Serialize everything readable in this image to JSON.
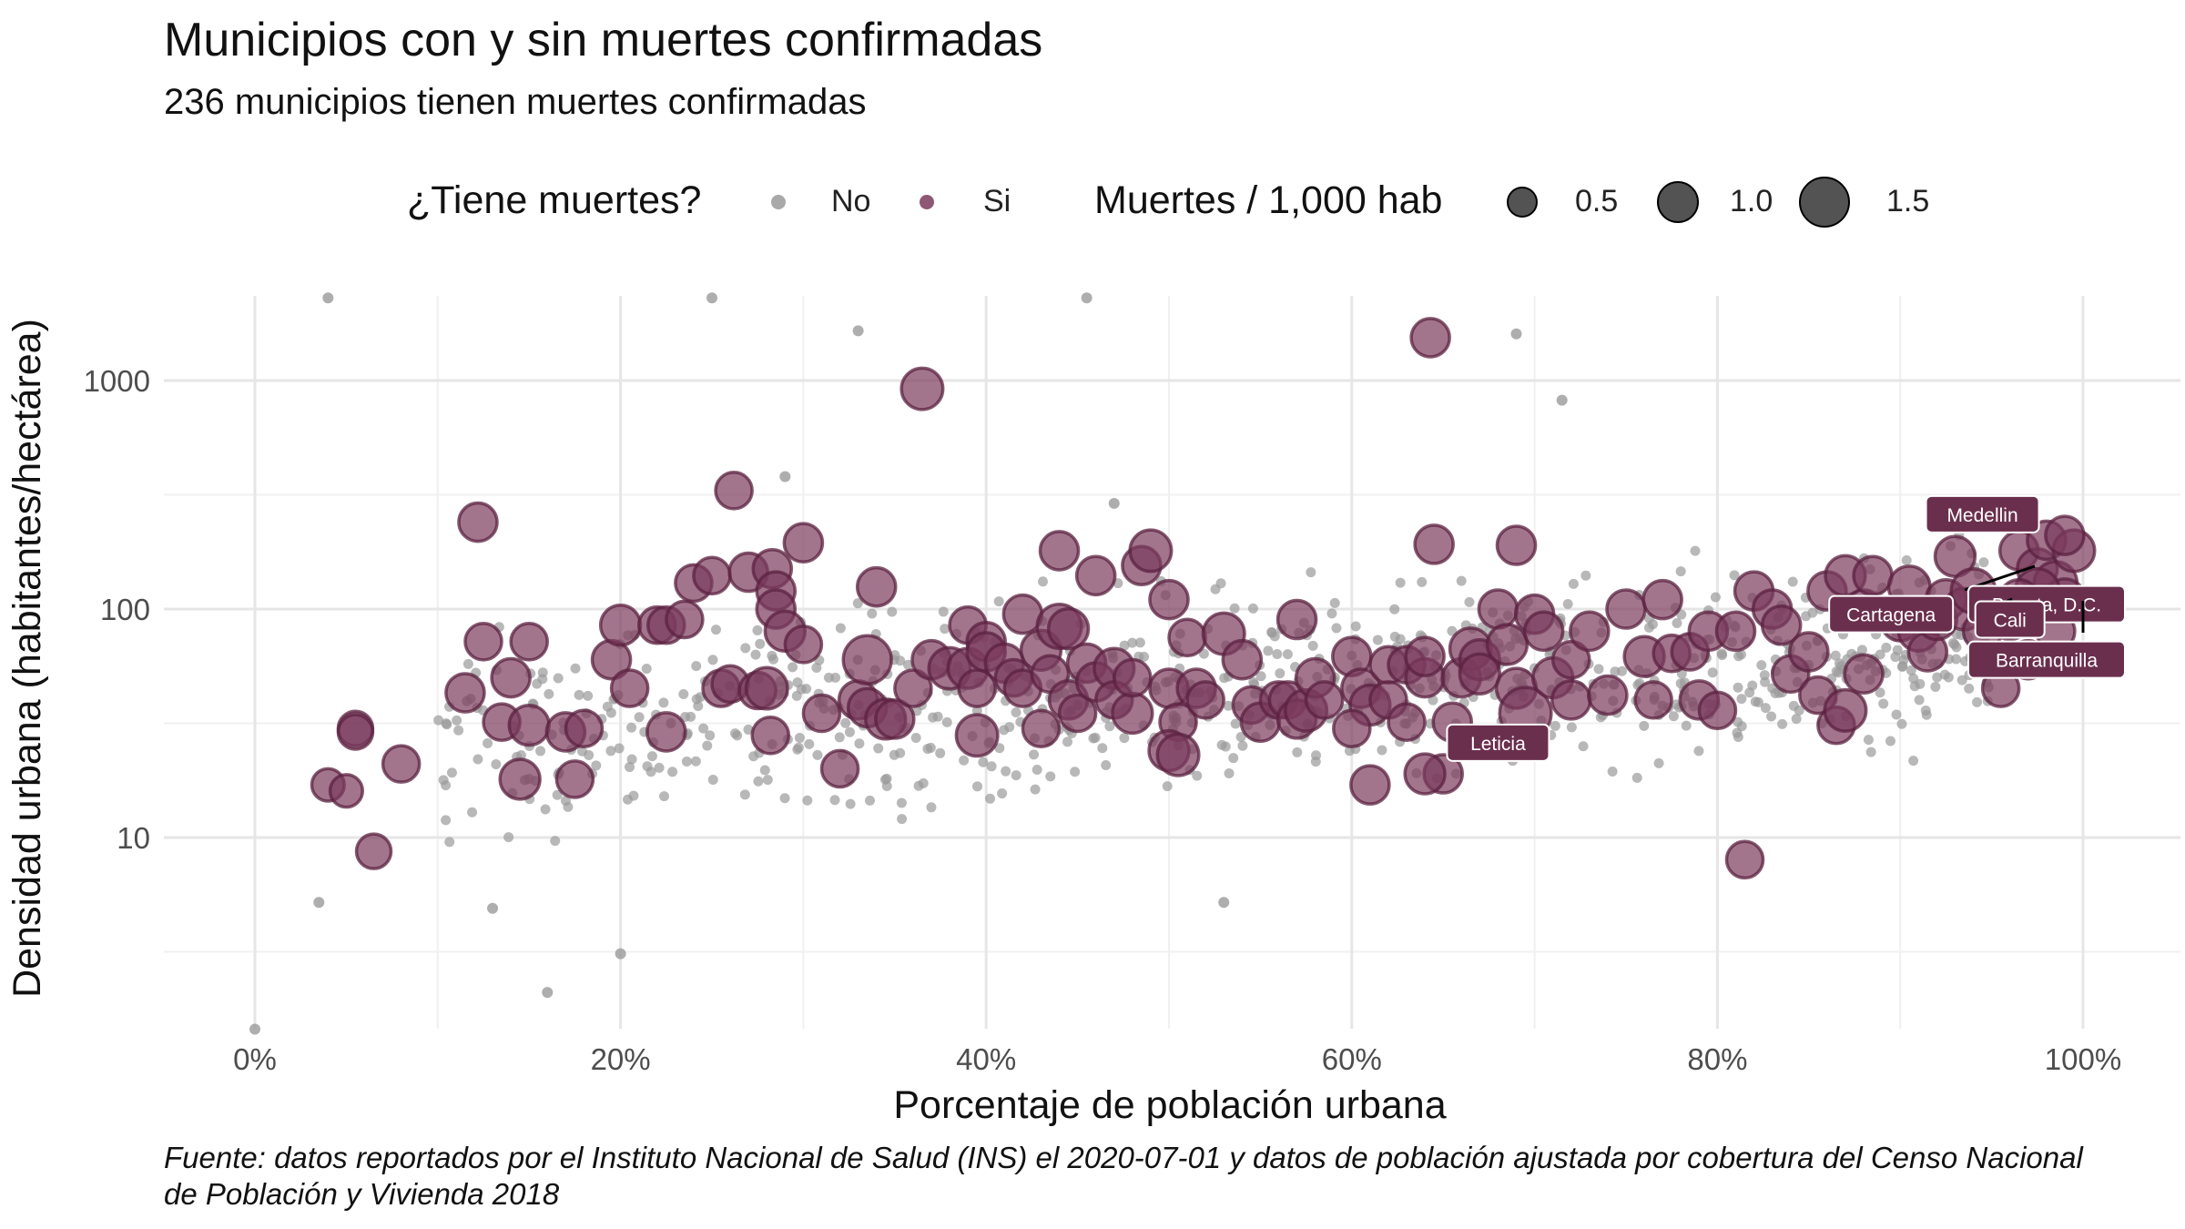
{
  "chart_data": {
    "type": "scatter",
    "title": "Municipios con y sin muertes confirmadas",
    "subtitle": "236 municipios tienen muertes confirmadas",
    "xlabel": "Porcentaje de población urbana",
    "ylabel": "Densidad urbana (habitantes/hectárea)",
    "x_scale": "linear",
    "y_scale": "log10",
    "xlim": [
      0,
      1
    ],
    "ylim": [
      1.6,
      2400
    ],
    "x_ticks": [
      0,
      0.2,
      0.4,
      0.6,
      0.8,
      1.0
    ],
    "x_tick_labels": [
      "0%",
      "20%",
      "40%",
      "60%",
      "80%",
      "100%"
    ],
    "y_ticks": [
      10,
      100,
      1000
    ],
    "y_tick_labels": [
      "10",
      "100",
      "1000"
    ],
    "grid": true,
    "legend_position": "top",
    "legend": {
      "color_title": "¿Tiene muertes?",
      "color_entries": [
        {
          "label": "No",
          "color": "#9a9a9a"
        },
        {
          "label": "Si",
          "color": "#7a3b5c"
        }
      ],
      "size_title": "Muertes / 1,000 hab",
      "size_entries": [
        {
          "label": "0.5",
          "value": 0.5
        },
        {
          "label": "1.0",
          "value": 1.0
        },
        {
          "label": "1.5",
          "value": 1.5
        }
      ]
    },
    "colors": {
      "no": "#9a9a9a",
      "si": "#7a3b5c",
      "si_stroke": "#5b2240",
      "label_bg": "#6b2f4e",
      "grid": "#e6e6e6"
    },
    "series": [
      {
        "name": "Si",
        "points": [
          [
            0.04,
            17,
            0.2
          ],
          [
            0.05,
            16,
            0.2
          ],
          [
            0.055,
            30,
            0.25
          ],
          [
            0.065,
            8.7,
            0.25
          ],
          [
            0.055,
            29,
            0.25
          ],
          [
            0.08,
            21,
            0.3
          ],
          [
            0.115,
            43,
            0.35
          ],
          [
            0.122,
            240,
            0.35
          ],
          [
            0.125,
            72,
            0.3
          ],
          [
            0.135,
            32,
            0.3
          ],
          [
            0.14,
            50,
            0.35
          ],
          [
            0.145,
            18,
            0.4
          ],
          [
            0.15,
            31,
            0.4
          ],
          [
            0.15,
            72,
            0.3
          ],
          [
            0.17,
            29,
            0.35
          ],
          [
            0.175,
            18,
            0.3
          ],
          [
            0.18,
            30,
            0.3
          ],
          [
            0.195,
            60,
            0.35
          ],
          [
            0.2,
            85,
            0.4
          ],
          [
            0.205,
            45,
            0.3
          ],
          [
            0.22,
            85,
            0.3
          ],
          [
            0.225,
            85,
            0.3
          ],
          [
            0.235,
            90,
            0.3
          ],
          [
            0.225,
            29,
            0.35
          ],
          [
            0.24,
            130,
            0.3
          ],
          [
            0.25,
            140,
            0.3
          ],
          [
            0.255,
            45,
            0.3
          ],
          [
            0.26,
            47,
            0.3
          ],
          [
            0.262,
            330,
            0.3
          ],
          [
            0.27,
            145,
            0.35
          ],
          [
            0.275,
            44,
            0.3
          ],
          [
            0.28,
            45,
            0.45
          ],
          [
            0.282,
            28,
            0.3
          ],
          [
            0.283,
            150,
            0.35
          ],
          [
            0.285,
            120,
            0.35
          ],
          [
            0.285,
            100,
            0.35
          ],
          [
            0.29,
            80,
            0.4
          ],
          [
            0.3,
            195,
            0.35
          ],
          [
            0.3,
            70,
            0.3
          ],
          [
            0.31,
            35,
            0.3
          ],
          [
            0.32,
            20,
            0.3
          ],
          [
            0.33,
            40,
            0.35
          ],
          [
            0.34,
            125,
            0.35
          ],
          [
            0.335,
            37,
            0.35
          ],
          [
            0.335,
            60,
            0.7
          ],
          [
            0.345,
            33,
            0.4
          ],
          [
            0.35,
            33,
            0.35
          ],
          [
            0.36,
            45,
            0.3
          ],
          [
            0.365,
            920,
            0.45
          ],
          [
            0.37,
            60,
            0.35
          ],
          [
            0.38,
            55,
            0.45
          ],
          [
            0.39,
            55,
            0.4
          ],
          [
            0.395,
            45,
            0.3
          ],
          [
            0.39,
            85,
            0.3
          ],
          [
            0.4,
            72,
            0.35
          ],
          [
            0.4,
            65,
            0.35
          ],
          [
            0.395,
            28,
            0.45
          ],
          [
            0.41,
            58,
            0.35
          ],
          [
            0.415,
            50,
            0.3
          ],
          [
            0.42,
            45,
            0.3
          ],
          [
            0.42,
            95,
            0.35
          ],
          [
            0.43,
            66,
            0.4
          ],
          [
            0.435,
            52,
            0.3
          ],
          [
            0.43,
            30,
            0.3
          ],
          [
            0.44,
            84,
            0.55
          ],
          [
            0.445,
            40,
            0.35
          ],
          [
            0.445,
            82,
            0.4
          ],
          [
            0.45,
            35,
            0.3
          ],
          [
            0.455,
            58,
            0.35
          ],
          [
            0.46,
            48,
            0.35
          ],
          [
            0.46,
            140,
            0.35
          ],
          [
            0.44,
            180,
            0.35
          ],
          [
            0.47,
            55,
            0.4
          ],
          [
            0.47,
            40,
            0.3
          ],
          [
            0.48,
            35,
            0.4
          ],
          [
            0.48,
            50,
            0.3
          ],
          [
            0.485,
            155,
            0.35
          ],
          [
            0.49,
            180,
            0.45
          ],
          [
            0.5,
            110,
            0.35
          ],
          [
            0.5,
            45,
            0.35
          ],
          [
            0.505,
            32,
            0.3
          ],
          [
            0.51,
            75,
            0.3
          ],
          [
            0.515,
            45,
            0.35
          ],
          [
            0.52,
            40,
            0.3
          ],
          [
            0.5,
            24,
            0.4
          ],
          [
            0.505,
            23,
            0.45
          ],
          [
            0.53,
            78,
            0.45
          ],
          [
            0.54,
            60,
            0.35
          ],
          [
            0.545,
            38,
            0.3
          ],
          [
            0.55,
            32,
            0.35
          ],
          [
            0.56,
            40,
            0.3
          ],
          [
            0.565,
            40,
            0.3
          ],
          [
            0.57,
            33,
            0.35
          ],
          [
            0.575,
            36,
            0.45
          ],
          [
            0.58,
            50,
            0.35
          ],
          [
            0.585,
            40,
            0.3
          ],
          [
            0.57,
            90,
            0.35
          ],
          [
            0.6,
            62,
            0.35
          ],
          [
            0.605,
            45,
            0.35
          ],
          [
            0.61,
            38,
            0.4
          ],
          [
            0.62,
            57,
            0.3
          ],
          [
            0.63,
            57,
            0.3
          ],
          [
            0.6,
            30,
            0.3
          ],
          [
            0.61,
            17,
            0.35
          ],
          [
            0.62,
            40,
            0.3
          ],
          [
            0.63,
            32,
            0.3
          ],
          [
            0.64,
            50,
            0.35
          ],
          [
            0.64,
            62,
            0.35
          ],
          [
            0.645,
            192,
            0.35
          ],
          [
            0.643,
            1540,
            0.35
          ],
          [
            0.65,
            19,
            0.35
          ],
          [
            0.64,
            19,
            0.4
          ],
          [
            0.655,
            32,
            0.35
          ],
          [
            0.66,
            50,
            0.35
          ],
          [
            0.665,
            67,
            0.45
          ],
          [
            0.67,
            60,
            0.4
          ],
          [
            0.67,
            52,
            0.4
          ],
          [
            0.68,
            100,
            0.35
          ],
          [
            0.685,
            70,
            0.4
          ],
          [
            0.69,
            45,
            0.4
          ],
          [
            0.69,
            190,
            0.35
          ],
          [
            0.695,
            35,
            0.85
          ],
          [
            0.7,
            95,
            0.35
          ],
          [
            0.705,
            80,
            0.35
          ],
          [
            0.71,
            50,
            0.4
          ],
          [
            0.72,
            40,
            0.35
          ],
          [
            0.72,
            60,
            0.3
          ],
          [
            0.73,
            80,
            0.35
          ],
          [
            0.74,
            42,
            0.35
          ],
          [
            0.75,
            100,
            0.35
          ],
          [
            0.76,
            62,
            0.4
          ],
          [
            0.765,
            40,
            0.3
          ],
          [
            0.77,
            110,
            0.35
          ],
          [
            0.775,
            64,
            0.3
          ],
          [
            0.785,
            65,
            0.3
          ],
          [
            0.79,
            40,
            0.35
          ],
          [
            0.795,
            80,
            0.35
          ],
          [
            0.8,
            36,
            0.3
          ],
          [
            0.81,
            80,
            0.35
          ],
          [
            0.815,
            8,
            0.3
          ],
          [
            0.82,
            120,
            0.35
          ],
          [
            0.83,
            100,
            0.35
          ],
          [
            0.835,
            85,
            0.35
          ],
          [
            0.84,
            52,
            0.3
          ],
          [
            0.85,
            65,
            0.35
          ],
          [
            0.855,
            42,
            0.3
          ],
          [
            0.86,
            120,
            0.35
          ],
          [
            0.865,
            31,
            0.3
          ],
          [
            0.87,
            36,
            0.45
          ],
          [
            0.87,
            140,
            0.4
          ],
          [
            0.88,
            100,
            0.35
          ],
          [
            0.88,
            52,
            0.35
          ],
          [
            0.885,
            140,
            0.35
          ],
          [
            0.9,
            88,
            0.35
          ],
          [
            0.905,
            125,
            0.45
          ],
          [
            0.91,
            80,
            0.4
          ],
          [
            0.915,
            65,
            0.35
          ],
          [
            0.92,
            90,
            0.4
          ],
          [
            0.925,
            110,
            0.4
          ],
          [
            0.93,
            170,
            0.4
          ],
          [
            0.935,
            100,
            0.45
          ],
          [
            0.94,
            120,
            0.55
          ],
          [
            0.945,
            80,
            0.35
          ],
          [
            0.95,
            100,
            0.45
          ],
          [
            0.955,
            45,
            0.3
          ],
          [
            0.96,
            90,
            0.4
          ],
          [
            0.965,
            180,
            0.35
          ],
          [
            0.97,
            100,
            0.5
          ],
          [
            0.975,
            150,
            0.4
          ],
          [
            0.98,
            200,
            0.35
          ],
          [
            0.985,
            130,
            0.5
          ],
          [
            0.99,
            110,
            0.45
          ],
          [
            0.995,
            180,
            0.45
          ],
          [
            0.97,
            60,
            0.35
          ],
          [
            0.985,
            80,
            0.35
          ],
          [
            0.99,
            210,
            0.35
          ],
          [
            0.975,
            120,
            0.55
          ],
          [
            0.965,
            110,
            0.4
          ]
        ]
      },
      {
        "name": "No",
        "points": "dense cloud of small grey points (≈800 municipalities), concentrated between 20% and 100% urban and 10–150 hab/ha"
      }
    ],
    "annotations": [
      {
        "label": "Medellin",
        "x": 0.945,
        "y": 260
      },
      {
        "label": "Bogota, D.C.",
        "x": 1.0,
        "y": 105
      },
      {
        "label": "Cartagena",
        "x": 0.895,
        "y": 95
      },
      {
        "label": "Cali",
        "x": 0.96,
        "y": 90
      },
      {
        "label": "Barranquilla",
        "x": 1.0,
        "y": 60
      },
      {
        "label": "Leticia",
        "x": 0.68,
        "y": 26
      }
    ],
    "caption": "Fuente: datos reportados por el Instituto Nacional de Salud (INS) el 2020-07-01 y datos de población ajustada por cobertura del Censo Nacional de Población y Vivienda 2018"
  }
}
